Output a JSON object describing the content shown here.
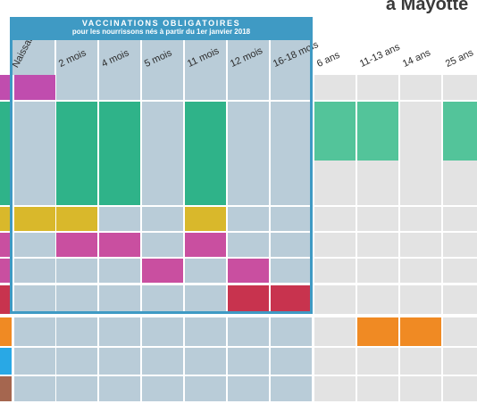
{
  "top_right_text": "à Mayotte",
  "mandatory": {
    "title": "VACCINATIONS OBLIGATOIRES",
    "subtitle": "pour les nourrissons nés à partir du 1er janvier 2018"
  },
  "chart_data": {
    "type": "table",
    "title": "VACCINATIONS OBLIGATOIRES",
    "subtitle": "pour les nourrissons nés à partir du 1er janvier 2018",
    "columns": [
      "Naissance",
      "2 mois",
      "4 mois",
      "5 mois",
      "11 mois",
      "12 mois",
      "16-18 mois",
      "6 ans",
      "11-13 ans",
      "14 ans",
      "25 ans"
    ],
    "mandatory_columns": 7,
    "rows": [
      {
        "color": "#c04dae",
        "filled": [
          0
        ]
      },
      {
        "color": "#2fb389",
        "filled": [
          1,
          2,
          4
        ],
        "light_filled": [
          7,
          8,
          10
        ]
      },
      {
        "color": "#d9b82b",
        "filled": [
          0,
          1,
          4
        ]
      },
      {
        "color": "#c94fa0",
        "filled": [
          1,
          2,
          4
        ]
      },
      {
        "color": "#c94fa0",
        "filled": [
          3,
          5
        ]
      },
      {
        "color": "#c8334e",
        "filled": [
          5,
          6
        ]
      },
      {
        "color": "#f08a23",
        "filled": [
          8,
          9
        ]
      },
      {
        "color": "#29a8e5",
        "filled": []
      },
      {
        "color": "#a5664f",
        "filled": []
      }
    ],
    "colors": {
      "cell_inside": "#b9ccd8",
      "cell_outside": "#e3e3e3",
      "light_green": "#53c49a",
      "frame": "#3f9ac4"
    }
  }
}
